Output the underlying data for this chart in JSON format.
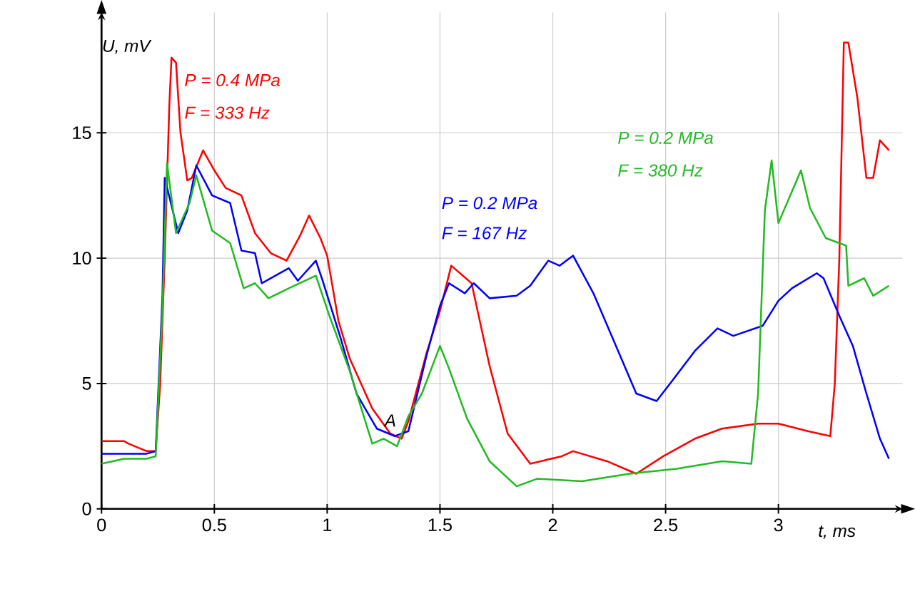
{
  "chart_data": {
    "type": "line",
    "xlabel": "t, ms",
    "ylabel": "U, mV",
    "xlim": [
      0,
      3.55
    ],
    "ylim": [
      0,
      19.8
    ],
    "xticks": [
      0,
      0.5,
      1,
      1.5,
      2,
      2.5,
      3
    ],
    "yticks": [
      0,
      5,
      10,
      15
    ],
    "grid": true,
    "legend": false,
    "marker": "none",
    "line_style": "solid",
    "series": [
      {
        "color": "#ff0000",
        "x": [
          0,
          0.1,
          0.12,
          0.2,
          0.24,
          0.26,
          0.28,
          0.3,
          0.31,
          0.33,
          0.35,
          0.38,
          0.4,
          0.45,
          0.5,
          0.55,
          0.62,
          0.68,
          0.75,
          0.82,
          0.88,
          0.92,
          0.97,
          1.0,
          1.05,
          1.1,
          1.2,
          1.28,
          1.33,
          1.36,
          1.44,
          1.5,
          1.55,
          1.64,
          1.72,
          1.8,
          1.9,
          2.04,
          2.09,
          2.24,
          2.37,
          2.49,
          2.63,
          2.75,
          2.91,
          3.0,
          3.13,
          3.23,
          3.25,
          3.27,
          3.29,
          3.31,
          3.35,
          3.39,
          3.42,
          3.45,
          3.49
        ],
        "values": [
          2.7,
          2.7,
          2.6,
          2.3,
          2.3,
          5,
          10,
          16,
          18.0,
          17.8,
          15,
          13.1,
          13.2,
          14.3,
          13.5,
          12.8,
          12.5,
          11,
          10.2,
          9.9,
          10.9,
          11.7,
          10.8,
          10.1,
          7.5,
          6,
          4,
          3.0,
          2.8,
          3.5,
          6.2,
          7.9,
          9.7,
          9.0,
          5.7,
          3.0,
          1.8,
          2.1,
          2.3,
          1.9,
          1.4,
          2.1,
          2.8,
          3.2,
          3.4,
          3.4,
          3.1,
          2.9,
          5.0,
          10,
          18.6,
          18.6,
          16.4,
          13.2,
          13.2,
          14.7,
          14.3
        ]
      },
      {
        "color": "#0000ff",
        "x": [
          0,
          0.2,
          0.24,
          0.27,
          0.28,
          0.34,
          0.38,
          0.42,
          0.49,
          0.57,
          0.62,
          0.68,
          0.71,
          0.83,
          0.87,
          0.95,
          0.98,
          1.06,
          1.13,
          1.22,
          1.3,
          1.36,
          1.44,
          1.5,
          1.54,
          1.61,
          1.65,
          1.72,
          1.84,
          1.9,
          1.98,
          2.03,
          2.09,
          2.18,
          2.28,
          2.37,
          2.46,
          2.52,
          2.63,
          2.73,
          2.8,
          2.93,
          3.0,
          3.06,
          3.17,
          3.2,
          3.27,
          3.33,
          3.39,
          3.45,
          3.49
        ],
        "values": [
          2.2,
          2.2,
          2.3,
          8.5,
          13.2,
          11.0,
          11.9,
          13.7,
          12.5,
          12.2,
          10.3,
          10.2,
          9.0,
          9.6,
          9.1,
          9.9,
          9.1,
          6.8,
          4.6,
          3.2,
          2.9,
          3.1,
          6.1,
          8.1,
          9.0,
          8.6,
          9.0,
          8.4,
          8.5,
          8.9,
          9.9,
          9.7,
          10.1,
          8.6,
          6.5,
          4.6,
          4.3,
          5.0,
          6.3,
          7.2,
          6.9,
          7.3,
          8.3,
          8.8,
          9.4,
          9.2,
          7.7,
          6.5,
          4.6,
          2.8,
          2.0
        ]
      },
      {
        "color": "#22bb22",
        "x": [
          0,
          0.1,
          0.2,
          0.24,
          0.27,
          0.29,
          0.33,
          0.39,
          0.42,
          0.49,
          0.57,
          0.63,
          0.68,
          0.74,
          0.83,
          0.95,
          1.01,
          1.1,
          1.2,
          1.25,
          1.31,
          1.36,
          1.42,
          1.5,
          1.54,
          1.62,
          1.72,
          1.84,
          1.93,
          2.13,
          2.34,
          2.55,
          2.75,
          2.88,
          2.91,
          2.94,
          2.97,
          3.0,
          3.1,
          3.14,
          3.21,
          3.3,
          3.31,
          3.38,
          3.42,
          3.49
        ],
        "values": [
          1.8,
          2.0,
          2.0,
          2.1,
          8,
          13.8,
          11.0,
          12.2,
          13.3,
          11.1,
          10.6,
          8.8,
          9.0,
          8.4,
          8.8,
          9.3,
          7.7,
          5.5,
          2.6,
          2.8,
          2.5,
          3.7,
          4.6,
          6.5,
          5.6,
          3.6,
          1.9,
          0.9,
          1.2,
          1.1,
          1.4,
          1.6,
          1.9,
          1.8,
          4.6,
          11.9,
          13.9,
          11.4,
          13.5,
          12.0,
          10.8,
          10.5,
          8.9,
          9.2,
          8.5,
          8.9
        ]
      }
    ],
    "annotations": [
      "P = 0.4 MPa",
      "F = 333 Hz",
      "P = 0.2 MPa",
      "F = 167 Hz",
      "P = 0.2 MPa",
      "F = 380 Hz",
      {
        "text": "A",
        "x": 1.28,
        "y": 3.0
      }
    ]
  }
}
